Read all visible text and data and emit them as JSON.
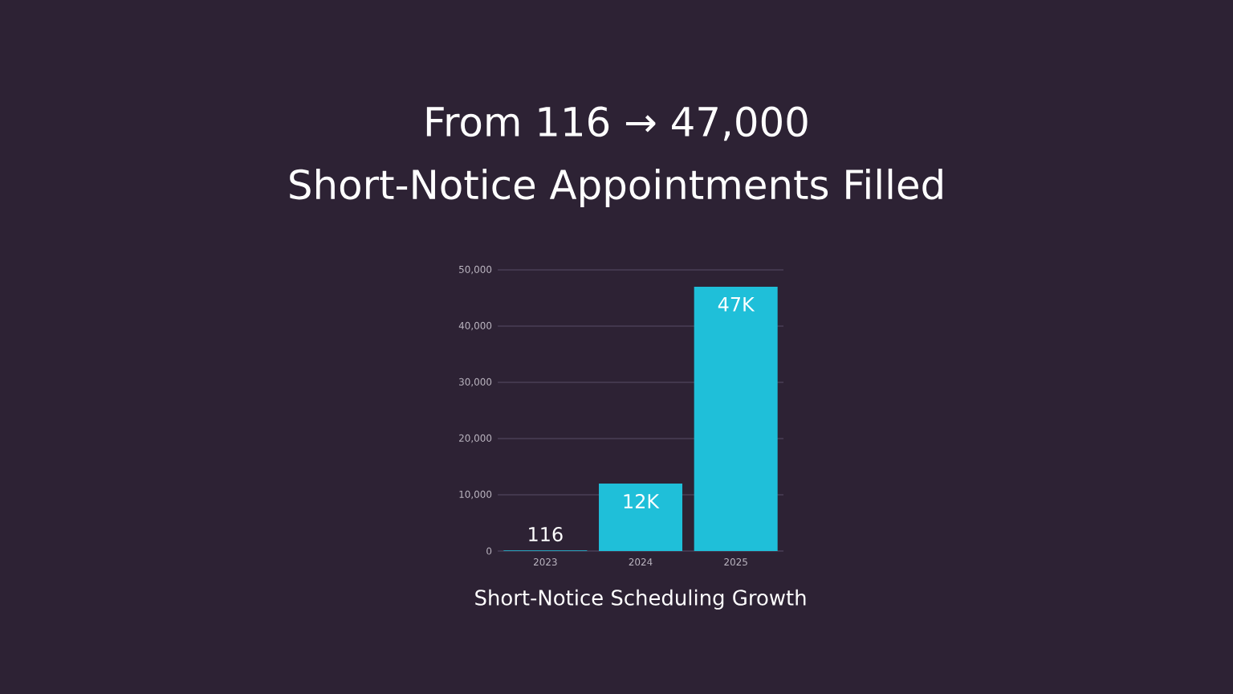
{
  "chart_data": {
    "type": "bar",
    "title": "From 116 → 47,000",
    "subtitle": "Short-Notice Appointments Filled",
    "xlabel": "Short-Notice Scheduling Growth",
    "categories": [
      "2023",
      "2024",
      "2025"
    ],
    "values": [
      116,
      12000,
      47000
    ],
    "value_labels": [
      "116",
      "12K",
      "47K"
    ],
    "color": "#1fbfd9",
    "ylim": [
      0,
      50000
    ],
    "yticks": [
      {
        "value": 0,
        "label": "0"
      },
      {
        "value": 10000,
        "label": "10,000"
      },
      {
        "value": 20000,
        "label": "20,000"
      },
      {
        "value": 30000,
        "label": "30,000"
      },
      {
        "value": 40000,
        "label": "40,000"
      },
      {
        "value": 50000,
        "label": "50,000"
      }
    ],
    "grid": "y"
  }
}
